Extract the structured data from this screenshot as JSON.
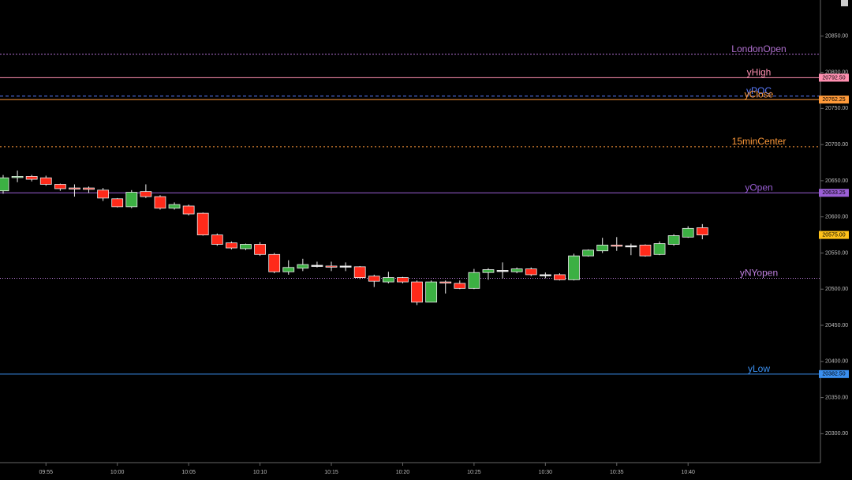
{
  "chart_data": {
    "type": "candlestick",
    "x": [
      "09:52",
      "09:53",
      "09:54",
      "09:55",
      "09:56",
      "09:57",
      "09:58",
      "09:59",
      "10:00",
      "10:01",
      "10:02",
      "10:03",
      "10:04",
      "10:05",
      "10:06",
      "10:07",
      "10:08",
      "10:09",
      "10:10",
      "10:11",
      "10:12",
      "10:13",
      "10:14",
      "10:15",
      "10:16",
      "10:17",
      "10:18",
      "10:19",
      "10:20",
      "10:21",
      "10:22",
      "10:23",
      "10:24",
      "10:25",
      "10:26",
      "10:27",
      "10:28",
      "10:29",
      "10:30",
      "10:31",
      "10:32",
      "10:33",
      "10:34",
      "10:35",
      "10:36",
      "10:37",
      "10:38",
      "10:39",
      "10:40",
      "10:41"
    ],
    "open": [
      20636,
      20655,
      20656,
      20654,
      20645,
      20640,
      20640,
      20637,
      20625,
      20614,
      20635,
      20628,
      20612,
      20615,
      20605,
      20575,
      20564,
      20556,
      20562,
      20548,
      20524,
      20529,
      20533,
      20532,
      20532,
      20531,
      20518,
      20510,
      20516,
      20510,
      20482,
      20510,
      20508,
      20501,
      20523,
      20526,
      20524,
      20528,
      20520,
      20520,
      20513,
      20546,
      20553,
      20561,
      20560,
      20561,
      20548,
      20562,
      20572,
      20585
    ],
    "high": [
      20658,
      20664,
      20658,
      20657,
      20646,
      20645,
      20642,
      20640,
      20626,
      20637,
      20645,
      20630,
      20620,
      20617,
      20606,
      20577,
      20566,
      20563,
      20565,
      20550,
      20540,
      20542,
      20538,
      20538,
      20537,
      20532,
      20520,
      20524,
      20517,
      20512,
      20512,
      20512,
      20512,
      20528,
      20529,
      20537,
      20530,
      20530,
      20523,
      20522,
      20549,
      20555,
      20571,
      20572,
      20563,
      20562,
      20566,
      20576,
      20587,
      20590
    ],
    "low": [
      20632,
      20648,
      20649,
      20643,
      20636,
      20628,
      20633,
      20622,
      20613,
      20612,
      20626,
      20610,
      20610,
      20602,
      20574,
      20560,
      20555,
      20554,
      20546,
      20522,
      20520,
      20525,
      20530,
      20525,
      20525,
      20514,
      20503,
      20508,
      20508,
      20478,
      20482,
      20494,
      20500,
      20500,
      20513,
      20515,
      20522,
      20518,
      20515,
      20512,
      20512,
      20545,
      20550,
      20553,
      20547,
      20545,
      20547,
      20560,
      20571,
      20569
    ],
    "close": [
      20654,
      20656,
      20652,
      20645,
      20639,
      20639,
      20638,
      20626,
      20614,
      20634,
      20628,
      20612,
      20617,
      20604,
      20575,
      20562,
      20557,
      20562,
      20548,
      20524,
      20530,
      20534,
      20533,
      20531,
      20532,
      20516,
      20511,
      20516,
      20510,
      20482,
      20510,
      20509,
      20501,
      20523,
      20527,
      20526,
      20528,
      20520,
      20520,
      20513,
      20546,
      20554,
      20561,
      20560,
      20560,
      20546,
      20563,
      20574,
      20584,
      20575
    ],
    "up_color": "#3cb043",
    "down_color": "#ff2a1a",
    "xlim": [
      "09:52",
      "10:49"
    ],
    "xticks": [
      "09:55",
      "10:00",
      "10:05",
      "10:10",
      "10:15",
      "10:20",
      "10:25",
      "10:30",
      "10:35",
      "10:40"
    ],
    "ylim": [
      20260,
      20900
    ],
    "yticks": [
      {
        "value": 20300,
        "label": "20300.00"
      },
      {
        "value": 20350,
        "label": "20350.00"
      },
      {
        "value": 20400,
        "label": "20400.00"
      },
      {
        "value": 20450,
        "label": "20450.00"
      },
      {
        "value": 20500,
        "label": "20500.00"
      },
      {
        "value": 20550,
        "label": "20550.00"
      },
      {
        "value": 20600,
        "label": "20600.00"
      },
      {
        "value": 20650,
        "label": "20650.00"
      },
      {
        "value": 20700,
        "label": "20700.00"
      },
      {
        "value": 20750,
        "label": "20750.00"
      },
      {
        "value": 20800,
        "label": "20800.00"
      },
      {
        "value": 20850,
        "label": "20850.00"
      }
    ],
    "last_price": 20575,
    "last_price_label": "20575.00",
    "last_price_color": "#ffc21a",
    "levels": [
      {
        "name": "LondonOpen",
        "value": 20825,
        "color": "#b070d0",
        "dash": "2,2"
      },
      {
        "name": "yHigh",
        "value": 20792.5,
        "value_label": "20792.50",
        "color": "#ff8fb0",
        "dash": "none"
      },
      {
        "name": "yPOC",
        "value": 20767,
        "color": "#5a7cff",
        "dash": "4,3"
      },
      {
        "name": "yClose",
        "value": 20762.25,
        "value_label": "20762.25",
        "color": "#ff9a3a",
        "dash": "none"
      },
      {
        "name": "15minCenter",
        "value": 20697,
        "color": "#ff9a3a",
        "dash": "2,3"
      },
      {
        "name": "yOpen",
        "value": 20633.25,
        "value_label": "20633.25",
        "color": "#9b5fd6",
        "dash": "none"
      },
      {
        "name": "yNYopen",
        "value": 20515,
        "color": "#c080e0",
        "dash": "1,2"
      },
      {
        "name": "yLow",
        "value": 20382.5,
        "value_label": "20382.50",
        "color": "#3a8ff0",
        "dash": "none"
      }
    ]
  }
}
